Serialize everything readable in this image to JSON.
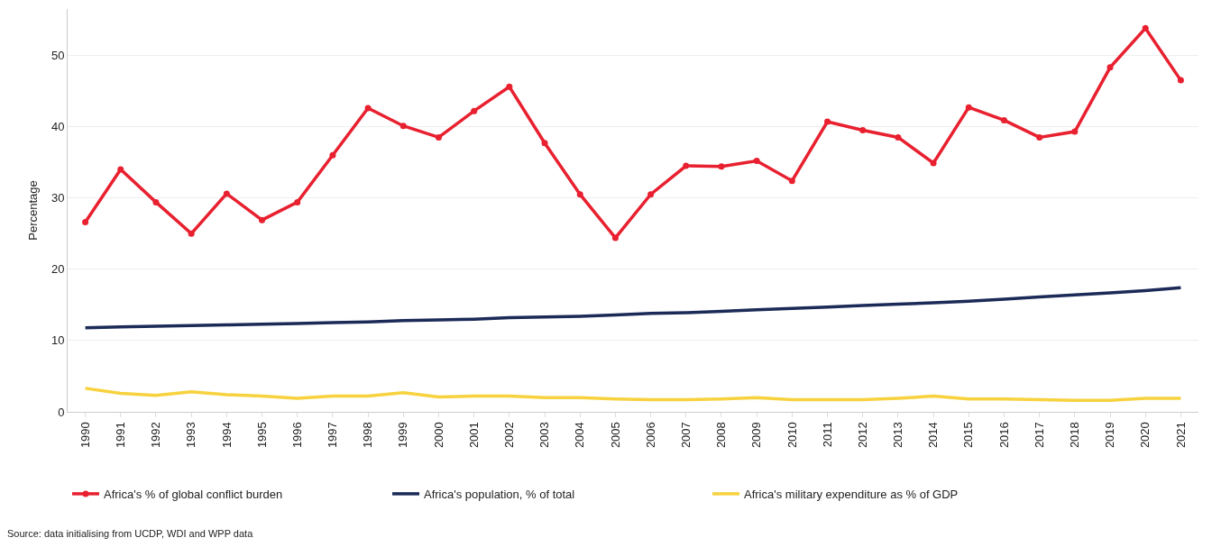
{
  "chart_data": {
    "type": "line",
    "ylabel": "Percentage",
    "categories": [
      "1990",
      "1991",
      "1992",
      "1993",
      "1994",
      "1995",
      "1996",
      "1997",
      "1998",
      "1999",
      "2000",
      "2001",
      "2002",
      "2003",
      "2004",
      "2005",
      "2006",
      "2007",
      "2008",
      "2009",
      "2010",
      "2011",
      "2012",
      "2013",
      "2014",
      "2015",
      "2016",
      "2017",
      "2018",
      "2019",
      "2020",
      "2021"
    ],
    "series": [
      {
        "name": "Africa's % of global conflict burden",
        "color": "#e8202f",
        "marker": "circle",
        "values": [
          26.6,
          34.0,
          29.4,
          25.0,
          30.6,
          26.9,
          29.4,
          36.0,
          42.6,
          40.1,
          38.5,
          42.2,
          45.6,
          37.7,
          30.5,
          24.4,
          30.5,
          34.5,
          34.4,
          35.2,
          32.4,
          40.7,
          39.5,
          38.5,
          34.9,
          42.7,
          40.9,
          38.5,
          39.3,
          48.3,
          53.8,
          46.5
        ]
      },
      {
        "name": "Africa's population, % of total",
        "color": "#1b2a57",
        "marker": "none",
        "values": [
          11.8,
          11.9,
          12.0,
          12.1,
          12.2,
          12.3,
          12.4,
          12.5,
          12.6,
          12.8,
          12.9,
          13.0,
          13.2,
          13.3,
          13.4,
          13.6,
          13.8,
          13.9,
          14.1,
          14.3,
          14.5,
          14.7,
          14.9,
          15.1,
          15.3,
          15.5,
          15.8,
          16.1,
          16.4,
          16.7,
          17.0,
          17.4
        ]
      },
      {
        "name": "Africa's military expenditure as % of GDP",
        "color": "#f7d23e",
        "marker": "none",
        "values": [
          3.3,
          2.6,
          2.3,
          2.8,
          2.4,
          2.2,
          1.9,
          2.2,
          2.2,
          2.7,
          2.1,
          2.2,
          2.2,
          2.0,
          2.0,
          1.8,
          1.7,
          1.7,
          1.8,
          2.0,
          1.7,
          1.7,
          1.7,
          1.9,
          2.2,
          1.8,
          1.8,
          1.7,
          1.6,
          1.6,
          1.9,
          1.9
        ]
      }
    ],
    "ylim": [
      0,
      56.5
    ],
    "yticks": [
      0,
      10,
      20,
      30,
      40,
      50
    ],
    "grid": "y",
    "legend": "bottom",
    "line_style": "solid",
    "annotations": [
      "Source: data initialising from UCDP, WDI and WPP data"
    ]
  }
}
